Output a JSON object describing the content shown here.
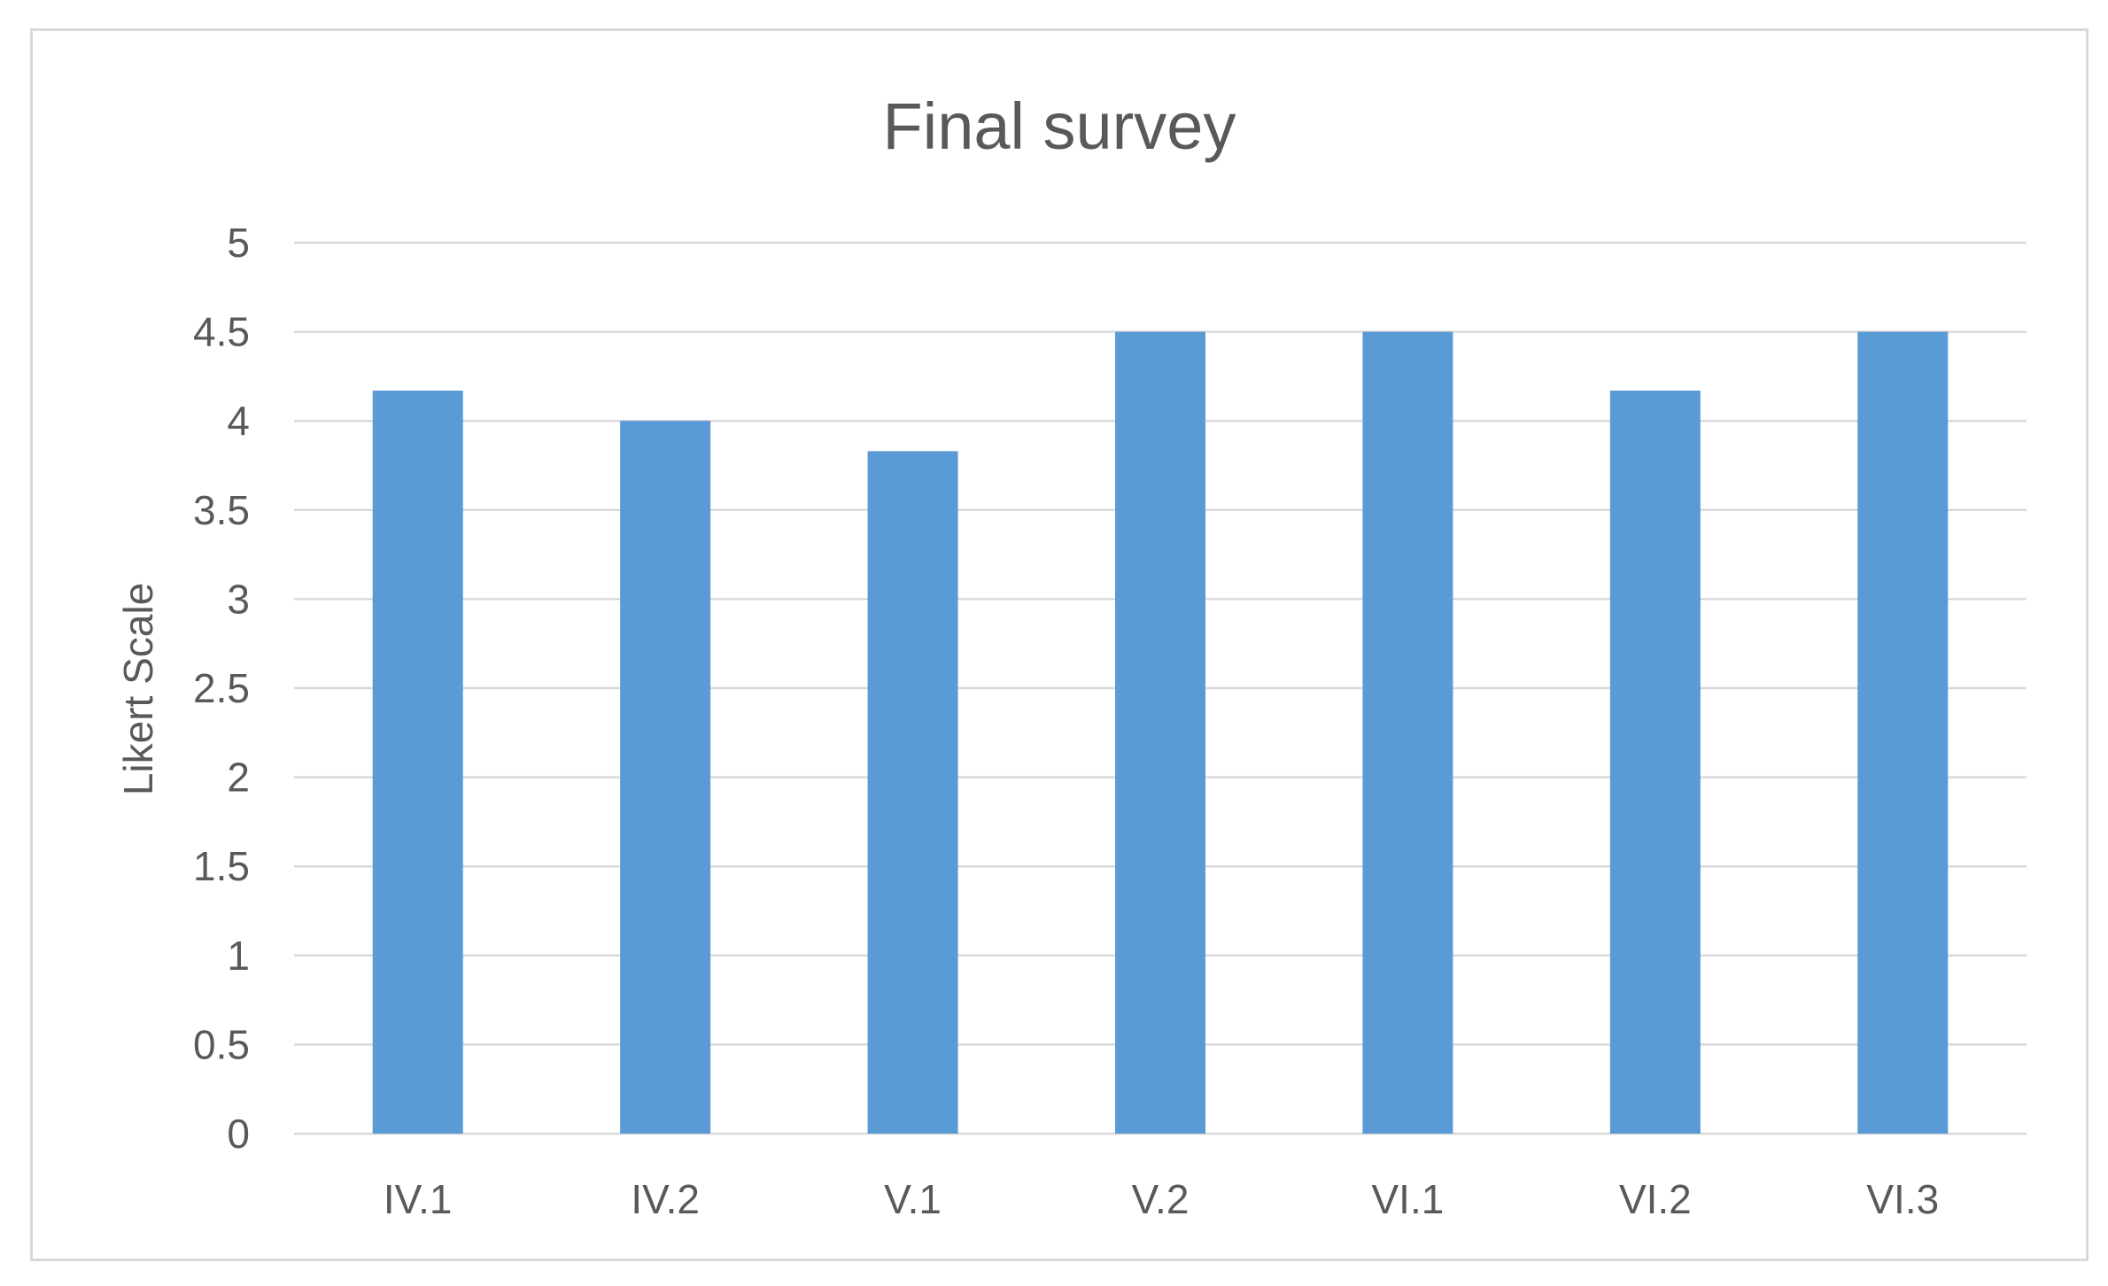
{
  "chart_data": {
    "type": "bar",
    "title": "Final survey",
    "xlabel": "",
    "ylabel": "Likert Scale",
    "categories": [
      "IV.1",
      "IV.2",
      "V.1",
      "V.2",
      "VI.1",
      "VI.2",
      "VI.3"
    ],
    "series": [
      {
        "values": [
          4.17,
          4.0,
          3.83,
          4.5,
          4.5,
          4.17,
          4.5
        ]
      }
    ],
    "ylim": [
      0,
      5
    ],
    "yticks": [
      "0",
      "0.5",
      "1",
      "1.5",
      "2",
      "2.5",
      "3",
      "3.5",
      "4",
      "4.5",
      "5"
    ],
    "grid": true,
    "legend": "none",
    "colors": {
      "bar": "#5B9BD5",
      "grid": "#d9d9d9",
      "text": "#595959",
      "border": "#d9d9d9"
    }
  }
}
